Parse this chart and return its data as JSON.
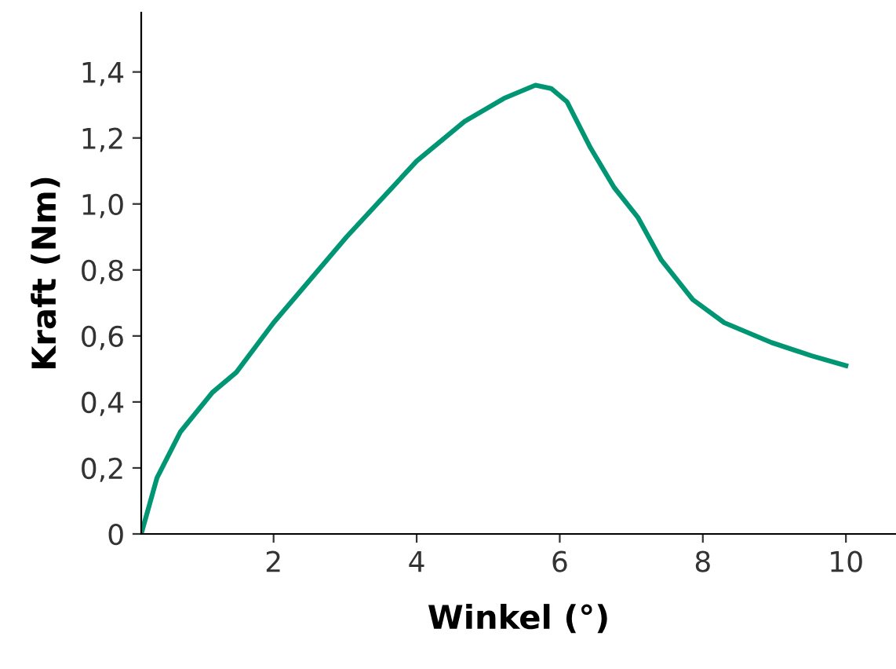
{
  "chart_data": {
    "type": "line",
    "xlabel": "Winkel (°)",
    "ylabel": "Kraft (Nm)",
    "xlim": [
      0.15,
      10.7
    ],
    "xticks": [
      2,
      4,
      6,
      8,
      10
    ],
    "ylim": [
      0,
      1.58
    ],
    "yticks": [
      0,
      {
        "value": 0.2,
        "label": "0,2"
      },
      {
        "value": 0.4,
        "label": "0,4"
      },
      {
        "value": 0.6,
        "label": "0,6"
      },
      {
        "value": 0.8,
        "label": "0,8"
      },
      {
        "value": 1.0,
        "label": "1,0"
      },
      {
        "value": 1.2,
        "label": "1,2"
      },
      {
        "value": 1.4,
        "label": "1,4"
      }
    ],
    "grid": false,
    "legend": false,
    "marker": "none",
    "line_style": "solid",
    "series": [
      {
        "color": "#009673",
        "x": [
          0.15,
          0.37,
          0.7,
          1.15,
          1.48,
          2.0,
          3.02,
          4.0,
          4.67,
          5.22,
          5.66,
          5.88,
          6.1,
          6.43,
          6.76,
          7.09,
          7.42,
          7.86,
          8.3,
          8.96,
          9.52,
          10.0
        ],
        "values": [
          0,
          0.17,
          0.31,
          0.43,
          0.49,
          0.64,
          0.9,
          1.13,
          1.25,
          1.32,
          1.36,
          1.35,
          1.31,
          1.17,
          1.05,
          0.96,
          0.83,
          0.71,
          0.64,
          0.58,
          0.54,
          0.51
        ]
      }
    ]
  }
}
